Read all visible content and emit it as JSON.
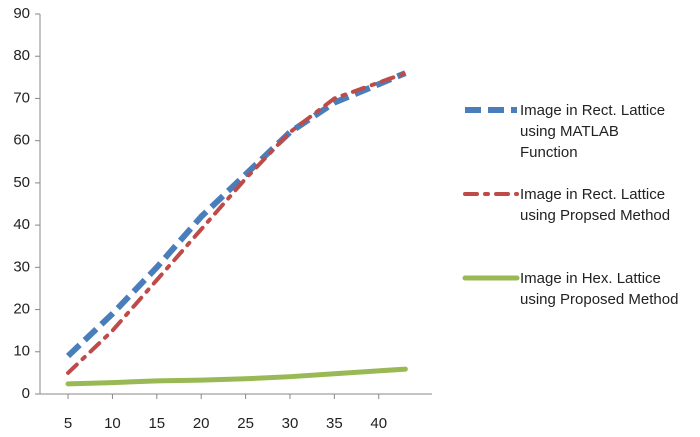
{
  "chart_data": {
    "type": "line",
    "x": [
      5,
      10,
      15,
      20,
      25,
      30,
      35,
      43
    ],
    "xlim": [
      1.84,
      46
    ],
    "xticks": [
      5,
      10,
      15,
      20,
      25,
      30,
      35,
      40
    ],
    "ylim": [
      0,
      90
    ],
    "yticks": [
      0,
      10,
      20,
      30,
      40,
      50,
      60,
      70,
      80,
      90
    ],
    "grid": false,
    "legend": "right",
    "series": [
      {
        "name": "Image in Rect. Lattice using MATLAB Function",
        "color": "#4a7ebb",
        "dash": "long-dash",
        "values": [
          9,
          19,
          30,
          42,
          52,
          62,
          69,
          76
        ]
      },
      {
        "name": "Image in Rect. Lattice using Propsed Method",
        "color": "#be4b48",
        "dash": "dash-dot",
        "values": [
          5,
          15,
          27,
          39,
          51,
          62,
          70,
          76
        ]
      },
      {
        "name": "Image in Hex. Lattice using Proposed Method",
        "color": "#98b954",
        "dash": "solid",
        "values": [
          2.4,
          2.7,
          3.1,
          3.3,
          3.6,
          4.1,
          4.8,
          5.9
        ]
      }
    ]
  }
}
